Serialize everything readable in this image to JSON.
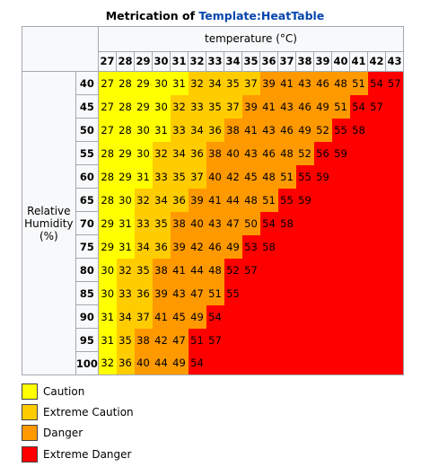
{
  "title": {
    "prefix": "Metrication of ",
    "link_text": "Template:HeatTable"
  },
  "temperature_label": "temperature (°C)",
  "humidity_label_lines": [
    "Relative",
    "Humidity",
    "(%)"
  ],
  "temperatures": [
    "27",
    "28",
    "29",
    "30",
    "31",
    "32",
    "33",
    "34",
    "35",
    "36",
    "37",
    "38",
    "39",
    "40",
    "41",
    "42",
    "43"
  ],
  "colors": {
    "c1": "#ffff00",
    "c2": "#ffcc00",
    "c3": "#ff9900",
    "c4": "#ff0000"
  },
  "rows": [
    {
      "rh": "40",
      "values": [
        "27",
        "28",
        "29",
        "30",
        "31",
        "32",
        "34",
        "35",
        "37",
        "39",
        "41",
        "43",
        "46",
        "48",
        "51",
        "54",
        "57"
      ],
      "levels": [
        1,
        1,
        1,
        1,
        1,
        2,
        2,
        2,
        2,
        3,
        3,
        3,
        3,
        3,
        3,
        4,
        4
      ]
    },
    {
      "rh": "45",
      "values": [
        "27",
        "28",
        "29",
        "30",
        "32",
        "33",
        "35",
        "37",
        "39",
        "41",
        "43",
        "46",
        "49",
        "51",
        "54",
        "57",
        ""
      ],
      "levels": [
        1,
        1,
        1,
        1,
        2,
        2,
        2,
        2,
        3,
        3,
        3,
        3,
        3,
        3,
        4,
        4,
        4
      ]
    },
    {
      "rh": "50",
      "values": [
        "27",
        "28",
        "30",
        "31",
        "33",
        "34",
        "36",
        "38",
        "41",
        "43",
        "46",
        "49",
        "52",
        "55",
        "58",
        "",
        ""
      ],
      "levels": [
        1,
        1,
        1,
        1,
        2,
        2,
        2,
        3,
        3,
        3,
        3,
        3,
        3,
        4,
        4,
        4,
        4
      ]
    },
    {
      "rh": "55",
      "values": [
        "28",
        "29",
        "30",
        "32",
        "34",
        "36",
        "38",
        "40",
        "43",
        "46",
        "48",
        "52",
        "56",
        "59",
        "",
        "",
        ""
      ],
      "levels": [
        1,
        1,
        1,
        2,
        2,
        2,
        3,
        3,
        3,
        3,
        3,
        3,
        4,
        4,
        4,
        4,
        4
      ]
    },
    {
      "rh": "60",
      "values": [
        "28",
        "29",
        "31",
        "33",
        "35",
        "37",
        "40",
        "42",
        "45",
        "48",
        "51",
        "55",
        "59",
        "",
        "",
        "",
        ""
      ],
      "levels": [
        1,
        1,
        1,
        2,
        2,
        2,
        3,
        3,
        3,
        3,
        3,
        4,
        4,
        4,
        4,
        4,
        4
      ]
    },
    {
      "rh": "65",
      "values": [
        "28",
        "30",
        "32",
        "34",
        "36",
        "39",
        "41",
        "44",
        "48",
        "51",
        "55",
        "59",
        "",
        "",
        "",
        "",
        ""
      ],
      "levels": [
        1,
        1,
        2,
        2,
        2,
        3,
        3,
        3,
        3,
        3,
        4,
        4,
        4,
        4,
        4,
        4,
        4
      ]
    },
    {
      "rh": "70",
      "values": [
        "29",
        "31",
        "33",
        "35",
        "38",
        "40",
        "43",
        "47",
        "50",
        "54",
        "58",
        "",
        "",
        "",
        "",
        "",
        ""
      ],
      "levels": [
        1,
        1,
        2,
        2,
        3,
        3,
        3,
        3,
        3,
        4,
        4,
        4,
        4,
        4,
        4,
        4,
        4
      ]
    },
    {
      "rh": "75",
      "values": [
        "29",
        "31",
        "34",
        "36",
        "39",
        "42",
        "46",
        "49",
        "53",
        "58",
        "",
        "",
        "",
        "",
        "",
        "",
        ""
      ],
      "levels": [
        1,
        1,
        2,
        2,
        3,
        3,
        3,
        3,
        4,
        4,
        4,
        4,
        4,
        4,
        4,
        4,
        4
      ]
    },
    {
      "rh": "80",
      "values": [
        "30",
        "32",
        "35",
        "38",
        "41",
        "44",
        "48",
        "52",
        "57",
        "",
        "",
        "",
        "",
        "",
        "",
        "",
        ""
      ],
      "levels": [
        1,
        2,
        2,
        3,
        3,
        3,
        3,
        4,
        4,
        4,
        4,
        4,
        4,
        4,
        4,
        4,
        4
      ]
    },
    {
      "rh": "85",
      "values": [
        "30",
        "33",
        "36",
        "39",
        "43",
        "47",
        "51",
        "55",
        "",
        "",
        "",
        "",
        "",
        "",
        "",
        "",
        ""
      ],
      "levels": [
        1,
        2,
        2,
        3,
        3,
        3,
        3,
        4,
        4,
        4,
        4,
        4,
        4,
        4,
        4,
        4,
        4
      ]
    },
    {
      "rh": "90",
      "values": [
        "31",
        "34",
        "37",
        "41",
        "45",
        "49",
        "54",
        "",
        "",
        "",
        "",
        "",
        "",
        "",
        "",
        "",
        ""
      ],
      "levels": [
        1,
        2,
        2,
        3,
        3,
        3,
        4,
        4,
        4,
        4,
        4,
        4,
        4,
        4,
        4,
        4,
        4
      ]
    },
    {
      "rh": "95",
      "values": [
        "31",
        "35",
        "38",
        "42",
        "47",
        "51",
        "57",
        "",
        "",
        "",
        "",
        "",
        "",
        "",
        "",
        "",
        ""
      ],
      "levels": [
        1,
        2,
        3,
        3,
        3,
        4,
        4,
        4,
        4,
        4,
        4,
        4,
        4,
        4,
        4,
        4,
        4
      ]
    },
    {
      "rh": "100",
      "values": [
        "32",
        "36",
        "40",
        "44",
        "49",
        "54",
        "",
        "",
        "",
        "",
        "",
        "",
        "",
        "",
        "",
        "",
        ""
      ],
      "levels": [
        1,
        2,
        3,
        3,
        3,
        4,
        4,
        4,
        4,
        4,
        4,
        4,
        4,
        4,
        4,
        4,
        4
      ]
    }
  ],
  "legend": [
    {
      "label": "Caution",
      "color": "#ffff00"
    },
    {
      "label": "Extreme Caution",
      "color": "#ffcc00"
    },
    {
      "label": "Danger",
      "color": "#ff9900"
    },
    {
      "label": "Extreme Danger",
      "color": "#ff0000"
    }
  ]
}
